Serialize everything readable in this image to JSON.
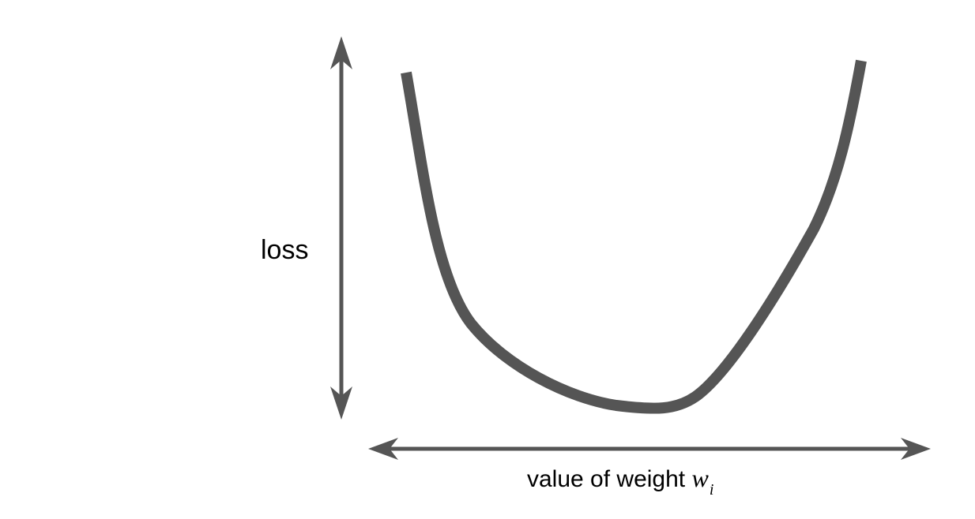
{
  "labels": {
    "y_axis": "loss",
    "x_axis_text": "value of weight",
    "x_axis_variable": "w",
    "x_axis_subscript": "i"
  },
  "colors": {
    "stroke": "#555555",
    "text": "#000000",
    "background": "#ffffff"
  }
}
